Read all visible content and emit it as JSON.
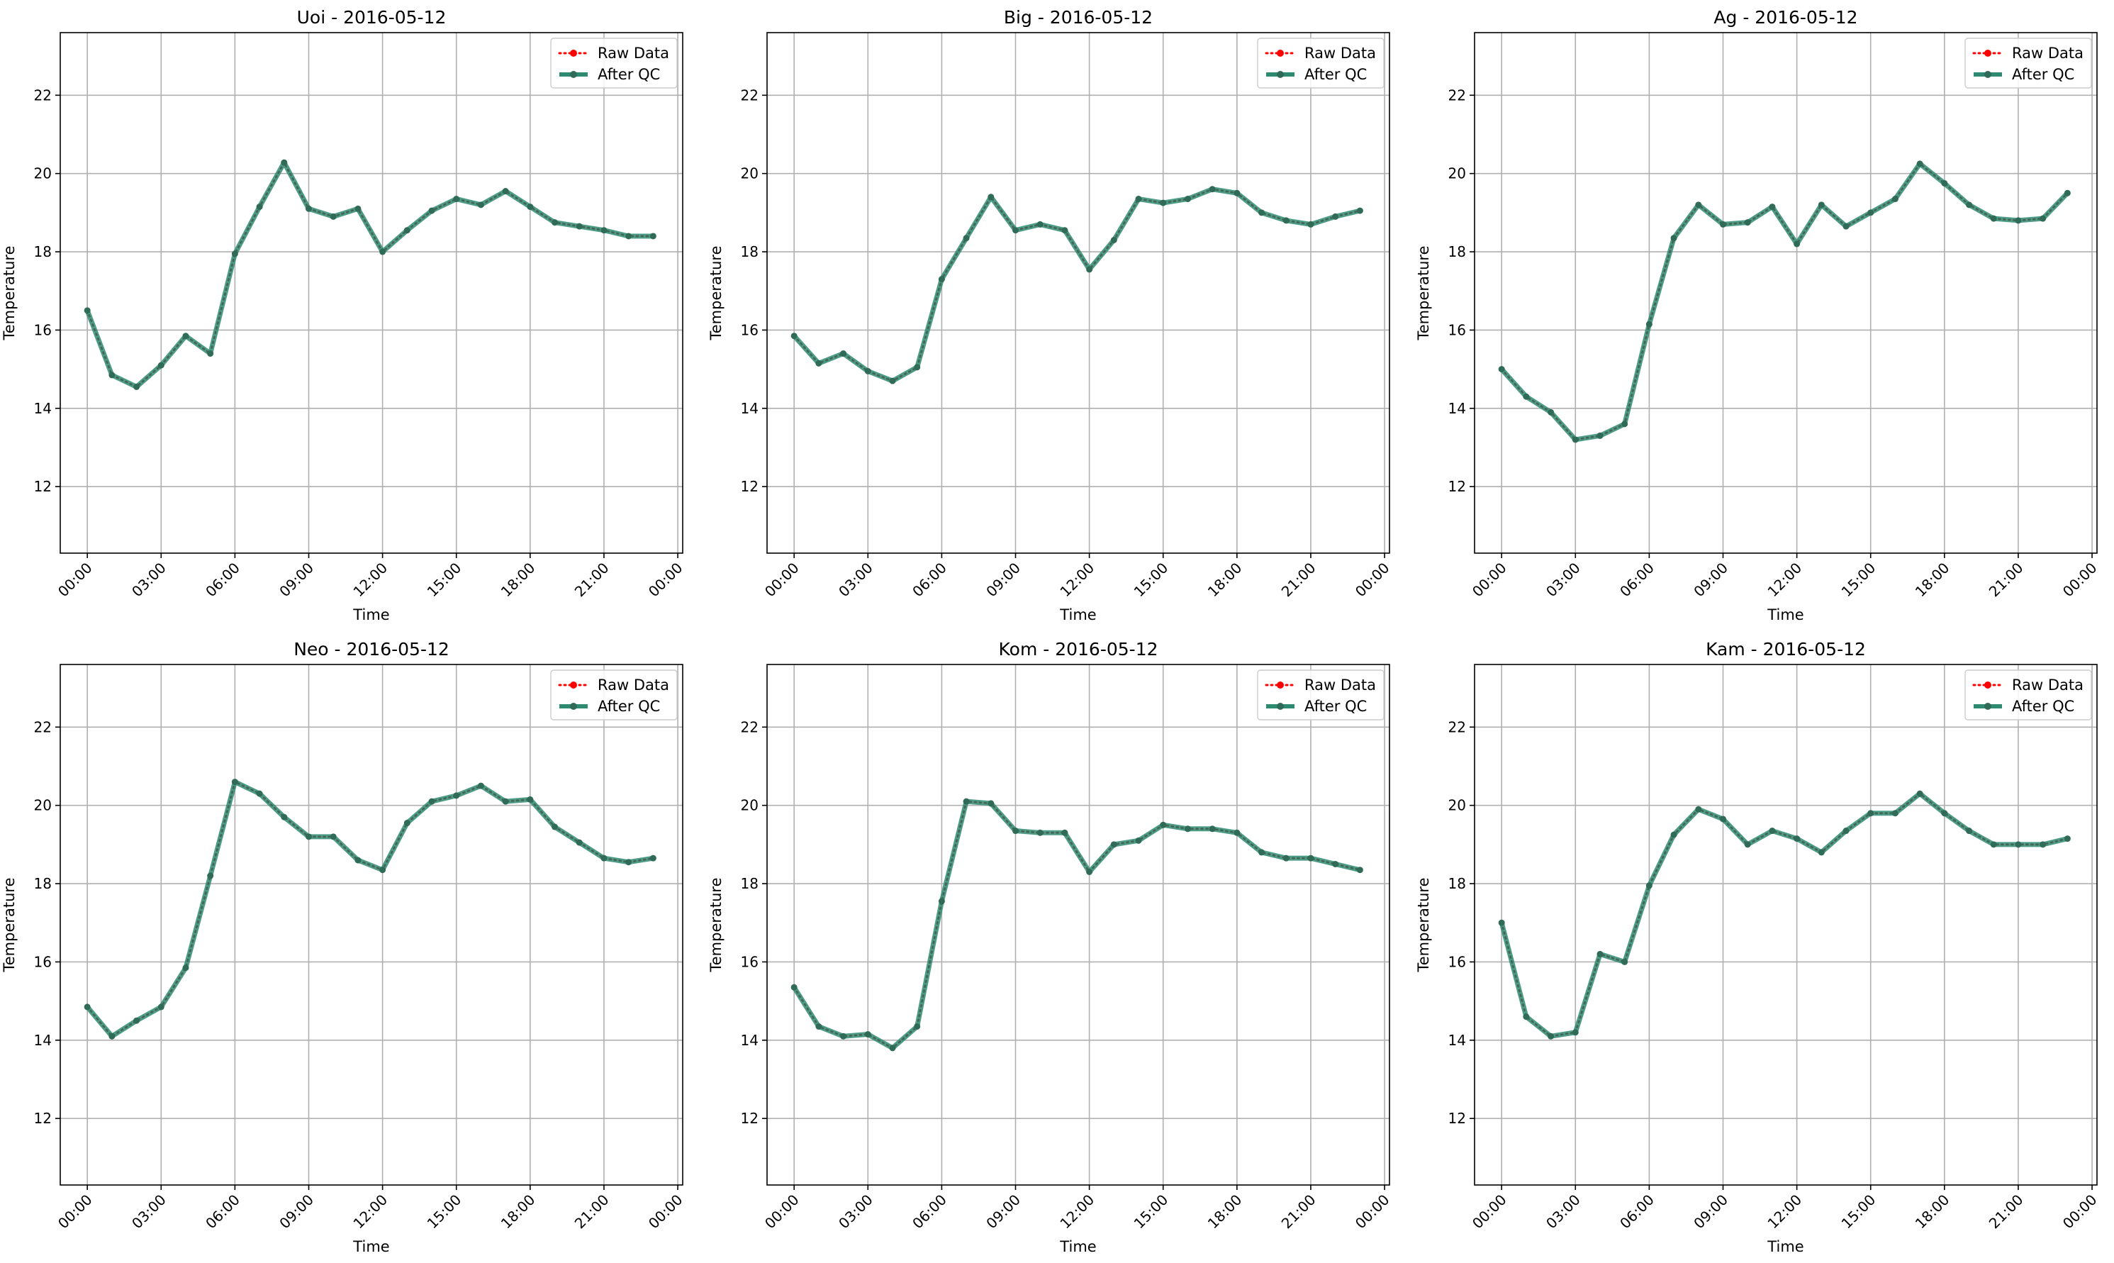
{
  "figure": {
    "y_axis_label": "Temperature",
    "x_axis_label": "Time",
    "legend": [
      "Raw Data",
      "After QC"
    ],
    "colors": {
      "raw": "#ff0000",
      "qc": "#2e8b72",
      "grid": "#b0b0b0"
    }
  },
  "chart_data": [
    {
      "type": "line",
      "title": "Uoi - 2016-05-12",
      "xlabel": "Time",
      "ylabel": "Temperature",
      "x": [
        "00:00",
        "01:00",
        "02:00",
        "03:00",
        "04:00",
        "05:00",
        "06:00",
        "07:00",
        "08:00",
        "09:00",
        "10:00",
        "11:00",
        "12:00",
        "13:00",
        "14:00",
        "15:00",
        "16:00",
        "17:00",
        "18:00",
        "19:00",
        "20:00",
        "21:00",
        "22:00",
        "23:00"
      ],
      "xticks": [
        "00:00",
        "03:00",
        "06:00",
        "09:00",
        "12:00",
        "15:00",
        "18:00",
        "21:00",
        "00:00"
      ],
      "yticks": [
        12,
        14,
        16,
        18,
        20,
        22
      ],
      "ylim": [
        10.3,
        23.6
      ],
      "grid": true,
      "legend_position": "top-right",
      "series": [
        {
          "name": "Raw Data",
          "values": [
            16.5,
            14.85,
            14.55,
            15.1,
            15.85,
            15.4,
            17.95,
            19.15,
            20.28,
            19.1,
            18.9,
            19.1,
            18.0,
            18.55,
            19.05,
            19.35,
            19.2,
            19.55,
            19.15,
            18.75,
            18.65,
            18.55,
            18.4,
            18.4
          ]
        },
        {
          "name": "After QC",
          "values": [
            16.5,
            14.85,
            14.55,
            15.1,
            15.85,
            15.4,
            17.95,
            19.15,
            20.28,
            19.1,
            18.9,
            19.1,
            18.0,
            18.55,
            19.05,
            19.35,
            19.2,
            19.55,
            19.15,
            18.75,
            18.65,
            18.55,
            18.4,
            18.4
          ]
        }
      ]
    },
    {
      "type": "line",
      "title": "Big - 2016-05-12",
      "xlabel": "Time",
      "ylabel": "Temperature",
      "x": [
        "00:00",
        "01:00",
        "02:00",
        "03:00",
        "04:00",
        "05:00",
        "06:00",
        "07:00",
        "08:00",
        "09:00",
        "10:00",
        "11:00",
        "12:00",
        "13:00",
        "14:00",
        "15:00",
        "16:00",
        "17:00",
        "18:00",
        "19:00",
        "20:00",
        "21:00",
        "22:00",
        "23:00"
      ],
      "xticks": [
        "00:00",
        "03:00",
        "06:00",
        "09:00",
        "12:00",
        "15:00",
        "18:00",
        "21:00",
        "00:00"
      ],
      "yticks": [
        12,
        14,
        16,
        18,
        20,
        22
      ],
      "ylim": [
        10.3,
        23.6
      ],
      "grid": true,
      "legend_position": "top-right",
      "series": [
        {
          "name": "Raw Data",
          "values": [
            15.85,
            15.15,
            15.4,
            14.95,
            14.7,
            15.05,
            17.3,
            18.35,
            19.4,
            18.55,
            18.7,
            18.55,
            17.55,
            18.3,
            19.35,
            19.25,
            19.35,
            19.6,
            19.5,
            19.0,
            18.8,
            18.7,
            18.9,
            19.05
          ]
        },
        {
          "name": "After QC",
          "values": [
            15.85,
            15.15,
            15.4,
            14.95,
            14.7,
            15.05,
            17.3,
            18.35,
            19.4,
            18.55,
            18.7,
            18.55,
            17.55,
            18.3,
            19.35,
            19.25,
            19.35,
            19.6,
            19.5,
            19.0,
            18.8,
            18.7,
            18.9,
            19.05
          ]
        }
      ]
    },
    {
      "type": "line",
      "title": "Ag - 2016-05-12",
      "xlabel": "Time",
      "ylabel": "Temperature",
      "x": [
        "00:00",
        "01:00",
        "02:00",
        "03:00",
        "04:00",
        "05:00",
        "06:00",
        "07:00",
        "08:00",
        "09:00",
        "10:00",
        "11:00",
        "12:00",
        "13:00",
        "14:00",
        "15:00",
        "16:00",
        "17:00",
        "18:00",
        "19:00",
        "20:00",
        "21:00",
        "22:00",
        "23:00"
      ],
      "xticks": [
        "00:00",
        "03:00",
        "06:00",
        "09:00",
        "12:00",
        "15:00",
        "18:00",
        "21:00",
        "00:00"
      ],
      "yticks": [
        12,
        14,
        16,
        18,
        20,
        22
      ],
      "ylim": [
        10.3,
        23.6
      ],
      "grid": true,
      "legend_position": "top-right",
      "series": [
        {
          "name": "Raw Data",
          "values": [
            15.0,
            14.3,
            13.9,
            13.2,
            13.3,
            13.6,
            16.15,
            18.35,
            19.2,
            18.7,
            18.75,
            19.15,
            18.2,
            19.2,
            18.65,
            19.0,
            19.35,
            20.25,
            19.75,
            19.2,
            18.85,
            18.8,
            18.85,
            19.5
          ]
        },
        {
          "name": "After QC",
          "values": [
            15.0,
            14.3,
            13.9,
            13.2,
            13.3,
            13.6,
            16.15,
            18.35,
            19.2,
            18.7,
            18.75,
            19.15,
            18.2,
            19.2,
            18.65,
            19.0,
            19.35,
            20.25,
            19.75,
            19.2,
            18.85,
            18.8,
            18.85,
            19.5
          ]
        }
      ]
    },
    {
      "type": "line",
      "title": "Neo - 2016-05-12",
      "xlabel": "Time",
      "ylabel": "Temperature",
      "x": [
        "00:00",
        "01:00",
        "02:00",
        "03:00",
        "04:00",
        "05:00",
        "06:00",
        "07:00",
        "08:00",
        "09:00",
        "10:00",
        "11:00",
        "12:00",
        "13:00",
        "14:00",
        "15:00",
        "16:00",
        "17:00",
        "18:00",
        "19:00",
        "20:00",
        "21:00",
        "22:00",
        "23:00"
      ],
      "xticks": [
        "00:00",
        "03:00",
        "06:00",
        "09:00",
        "12:00",
        "15:00",
        "18:00",
        "21:00",
        "00:00"
      ],
      "yticks": [
        12,
        14,
        16,
        18,
        20,
        22
      ],
      "ylim": [
        10.3,
        23.6
      ],
      "grid": true,
      "legend_position": "top-right",
      "series": [
        {
          "name": "Raw Data",
          "values": [
            14.85,
            14.1,
            14.5,
            14.85,
            15.85,
            18.2,
            20.6,
            20.3,
            19.7,
            19.2,
            19.2,
            18.6,
            18.35,
            19.55,
            20.1,
            20.25,
            20.5,
            20.1,
            20.15,
            19.45,
            19.05,
            18.65,
            18.55,
            18.65
          ]
        },
        {
          "name": "After QC",
          "values": [
            14.85,
            14.1,
            14.5,
            14.85,
            15.85,
            18.2,
            20.6,
            20.3,
            19.7,
            19.2,
            19.2,
            18.6,
            18.35,
            19.55,
            20.1,
            20.25,
            20.5,
            20.1,
            20.15,
            19.45,
            19.05,
            18.65,
            18.55,
            18.65
          ]
        }
      ]
    },
    {
      "type": "line",
      "title": "Kom - 2016-05-12",
      "xlabel": "Time",
      "ylabel": "Temperature",
      "x": [
        "00:00",
        "01:00",
        "02:00",
        "03:00",
        "04:00",
        "05:00",
        "06:00",
        "07:00",
        "08:00",
        "09:00",
        "10:00",
        "11:00",
        "12:00",
        "13:00",
        "14:00",
        "15:00",
        "16:00",
        "17:00",
        "18:00",
        "19:00",
        "20:00",
        "21:00",
        "22:00",
        "23:00"
      ],
      "xticks": [
        "00:00",
        "03:00",
        "06:00",
        "09:00",
        "12:00",
        "15:00",
        "18:00",
        "21:00",
        "00:00"
      ],
      "yticks": [
        12,
        14,
        16,
        18,
        20,
        22
      ],
      "ylim": [
        10.3,
        23.6
      ],
      "grid": true,
      "legend_position": "top-right",
      "series": [
        {
          "name": "Raw Data",
          "values": [
            15.35,
            14.35,
            14.1,
            14.15,
            13.8,
            14.35,
            17.55,
            20.1,
            20.05,
            19.35,
            19.3,
            19.3,
            18.3,
            19.0,
            19.1,
            19.5,
            19.4,
            19.4,
            19.3,
            18.8,
            18.65,
            18.65,
            18.5,
            18.35
          ]
        },
        {
          "name": "After QC",
          "values": [
            15.35,
            14.35,
            14.1,
            14.15,
            13.8,
            14.35,
            17.55,
            20.1,
            20.05,
            19.35,
            19.3,
            19.3,
            18.3,
            19.0,
            19.1,
            19.5,
            19.4,
            19.4,
            19.3,
            18.8,
            18.65,
            18.65,
            18.5,
            18.35
          ]
        }
      ]
    },
    {
      "type": "line",
      "title": "Kam - 2016-05-12",
      "xlabel": "Time",
      "ylabel": "Temperature",
      "x": [
        "00:00",
        "01:00",
        "02:00",
        "03:00",
        "04:00",
        "05:00",
        "06:00",
        "07:00",
        "08:00",
        "09:00",
        "10:00",
        "11:00",
        "12:00",
        "13:00",
        "14:00",
        "15:00",
        "16:00",
        "17:00",
        "18:00",
        "19:00",
        "20:00",
        "21:00",
        "22:00",
        "23:00"
      ],
      "xticks": [
        "00:00",
        "03:00",
        "06:00",
        "09:00",
        "12:00",
        "15:00",
        "18:00",
        "21:00",
        "00:00"
      ],
      "yticks": [
        12,
        14,
        16,
        18,
        20,
        22
      ],
      "ylim": [
        10.3,
        23.6
      ],
      "grid": true,
      "legend_position": "top-right",
      "series": [
        {
          "name": "Raw Data",
          "values": [
            17.0,
            14.6,
            14.1,
            14.2,
            16.2,
            16.0,
            17.95,
            19.25,
            19.9,
            19.65,
            19.0,
            19.35,
            19.15,
            18.8,
            19.35,
            19.8,
            19.8,
            20.3,
            19.8,
            19.35,
            19.0,
            19.0,
            19.0,
            19.15
          ]
        },
        {
          "name": "After QC",
          "values": [
            17.0,
            14.6,
            14.1,
            14.2,
            16.2,
            16.0,
            17.95,
            19.25,
            19.9,
            19.65,
            19.0,
            19.35,
            19.15,
            18.8,
            19.35,
            19.8,
            19.8,
            20.3,
            19.8,
            19.35,
            19.0,
            19.0,
            19.0,
            19.15
          ]
        }
      ]
    }
  ]
}
